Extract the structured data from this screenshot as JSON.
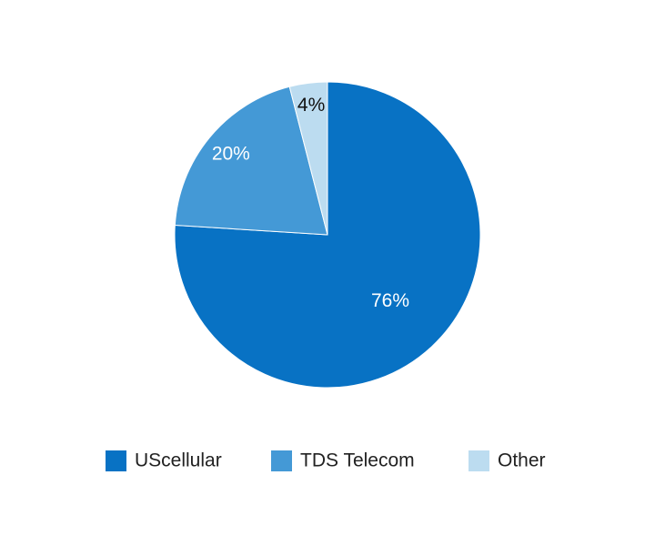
{
  "chart_data": {
    "type": "pie",
    "categories": [
      "UScellular",
      "TDS Telecom",
      "Other"
    ],
    "values": [
      76,
      20,
      4
    ],
    "value_labels": [
      "76%",
      "20%",
      "4%"
    ],
    "colors": [
      "#0872c4",
      "#4499d6",
      "#bcdcf0"
    ],
    "legend": "bottom"
  }
}
